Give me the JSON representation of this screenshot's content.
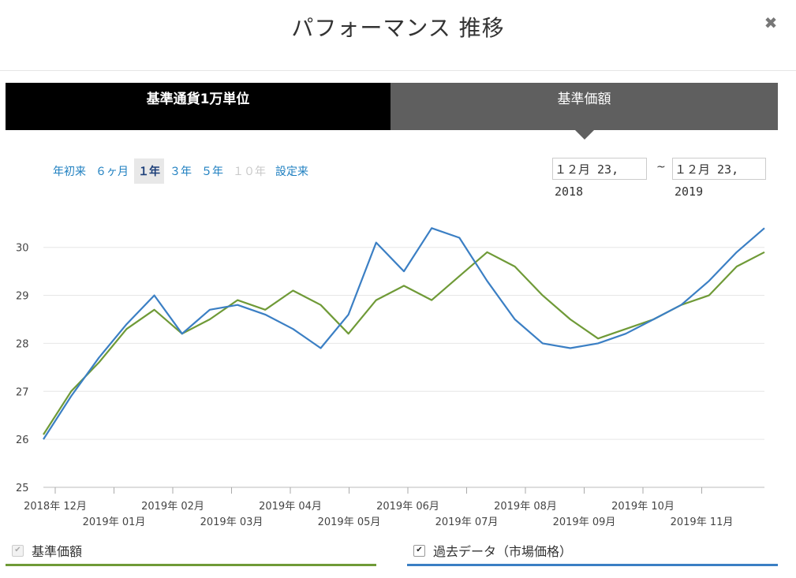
{
  "modal": {
    "title": "パフォーマンス 推移",
    "close_glyph": "✖"
  },
  "tabs": [
    {
      "label": "基準通貨1万単位",
      "active": false
    },
    {
      "label": "基準価額",
      "active": true
    }
  ],
  "ranges": [
    {
      "label": "年初来",
      "state": "normal"
    },
    {
      "label": "６ヶ月",
      "state": "normal"
    },
    {
      "label": "１年",
      "state": "active"
    },
    {
      "label": "３年",
      "state": "normal"
    },
    {
      "label": "５年",
      "state": "normal"
    },
    {
      "label": "１０年",
      "state": "disabled"
    },
    {
      "label": "設定来",
      "state": "normal"
    }
  ],
  "date_range": {
    "from": "１２月 23, 2018",
    "separator": "~",
    "to": "１２月 23, 2019"
  },
  "legend": [
    {
      "label": "基準価額",
      "checked": true,
      "color": "#6f9a37"
    },
    {
      "label": "過去データ（市場価格）",
      "checked": true,
      "color": "#3b7fc4"
    }
  ],
  "chart_data": {
    "type": "line",
    "y_ticks": [
      "25",
      "26",
      "27",
      "28",
      "29",
      "30"
    ],
    "ylim": [
      25,
      30.8
    ],
    "grid": true,
    "x_labels_upper": [
      "2018年 12月",
      "2019年 02月",
      "2019年 04月",
      "2019年 06月",
      "2019年 08月",
      "2019年 10月"
    ],
    "x_labels_lower": [
      "2019年 01月",
      "2019年 03月",
      "2019年 05月",
      "2019年 07月",
      "2019年 09月",
      "2019年 11月"
    ],
    "x": [
      "2018-12-24",
      "2019-01-07",
      "2019-01-21",
      "2019-02-04",
      "2019-02-18",
      "2019-03-04",
      "2019-03-18",
      "2019-04-01",
      "2019-04-15",
      "2019-04-29",
      "2019-05-13",
      "2019-05-27",
      "2019-06-10",
      "2019-06-24",
      "2019-07-08",
      "2019-07-22",
      "2019-08-05",
      "2019-08-19",
      "2019-09-02",
      "2019-09-16",
      "2019-09-30",
      "2019-10-14",
      "2019-10-28",
      "2019-11-11",
      "2019-11-25",
      "2019-12-09",
      "2019-12-23"
    ],
    "series": [
      {
        "name": "基準価額",
        "color": "#6f9a37",
        "values": [
          26.1,
          27.0,
          27.6,
          28.3,
          28.7,
          28.2,
          28.5,
          28.9,
          28.7,
          29.1,
          28.8,
          28.2,
          28.9,
          29.2,
          28.9,
          29.4,
          29.9,
          29.6,
          29.0,
          28.5,
          28.1,
          28.3,
          28.5,
          28.8,
          29.0,
          29.6,
          29.9
        ]
      },
      {
        "name": "過去データ（市場価格）",
        "color": "#3b7fc4",
        "values": [
          26.0,
          26.9,
          27.7,
          28.4,
          29.0,
          28.2,
          28.7,
          28.8,
          28.6,
          28.3,
          27.9,
          28.6,
          30.1,
          29.5,
          30.4,
          30.2,
          29.3,
          28.5,
          28.0,
          27.9,
          28.0,
          28.2,
          28.5,
          28.8,
          29.3,
          29.9,
          30.4
        ]
      }
    ]
  }
}
